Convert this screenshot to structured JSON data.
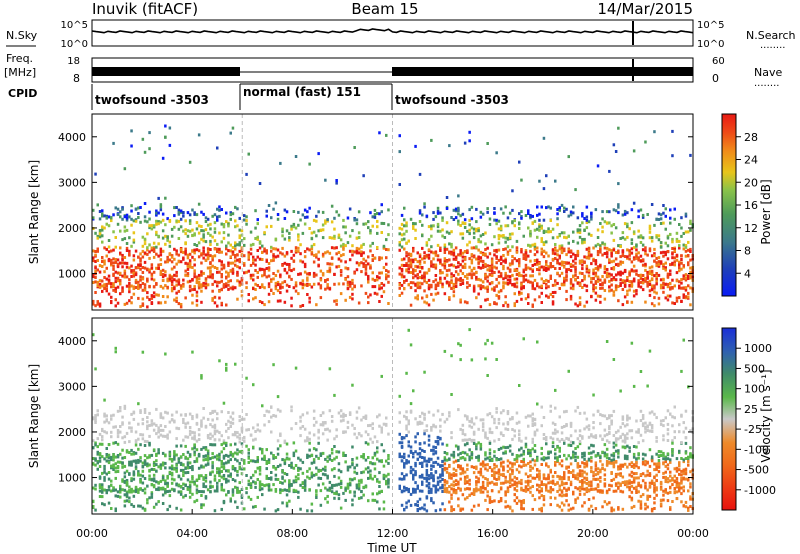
{
  "header": {
    "station": "Inuvik (fitACF)",
    "beam": "Beam 15",
    "date": "14/Mar/2015"
  },
  "left_labels": {
    "nsky": "N.Sky",
    "freq": "Freq.",
    "freq_unit": "[MHz]",
    "cpid": "CPID"
  },
  "right_labels": {
    "nsearch": "N.Search",
    "nave": "Nave",
    "dots": "........"
  },
  "chart_data": [
    {
      "type": "line",
      "panel": "noise",
      "left_ticks": [
        "10^5",
        "10^0"
      ],
      "right_ticks": [
        "10^5",
        "10^0"
      ]
    },
    {
      "type": "line",
      "panel": "frequency",
      "left_ticks": [
        "18",
        "8"
      ],
      "right_ticks": [
        "60",
        "0"
      ]
    },
    {
      "type": "table",
      "panel": "cpid",
      "segments": [
        {
          "label": "twofsound -3503",
          "start": 0,
          "end": 6
        },
        {
          "label": "normal (fast) 151",
          "start": 6,
          "end": 12
        },
        {
          "label": "twofsound -3503",
          "start": 12,
          "end": 24
        }
      ]
    },
    {
      "type": "heatmap",
      "panel": "power",
      "ylabel": "Slant Range [km]",
      "yticks": [
        "1000",
        "2000",
        "3000",
        "4000"
      ],
      "ylim": [
        200,
        4500
      ],
      "xlim": [
        0,
        24
      ],
      "colorbar": {
        "label": "Power [dB]",
        "ticks": [
          "4",
          "8",
          "12",
          "16",
          "20",
          "24",
          "28"
        ],
        "colors": [
          "#0a1cf5",
          "#1f40b8",
          "#3c7a8a",
          "#4e9b5a",
          "#88c24a",
          "#e8c51a",
          "#f08a1a",
          "#ee4a18",
          "#e81a14"
        ]
      }
    },
    {
      "type": "heatmap",
      "panel": "velocity",
      "ylabel": "Slant Range [km]",
      "yticks": [
        "1000",
        "2000",
        "3000",
        "4000"
      ],
      "ylim": [
        200,
        4500
      ],
      "xlim": [
        0,
        24
      ],
      "xlabel": "Time UT",
      "xticks": [
        "00:00",
        "04:00",
        "08:00",
        "12:00",
        "16:00",
        "20:00",
        "00:00"
      ],
      "colorbar": {
        "label": "Velocity [m s⁻¹]",
        "ticks": [
          "1000",
          "500",
          "100",
          "25",
          "-25",
          "-100",
          "-500",
          "-1000"
        ],
        "colors": [
          "#1a2fd8",
          "#2f61b0",
          "#3f8a6a",
          "#5ab84a",
          "#c8c8c8",
          "#ee8a2a",
          "#f06a1a",
          "#ee3a14",
          "#e8120e"
        ]
      }
    }
  ]
}
